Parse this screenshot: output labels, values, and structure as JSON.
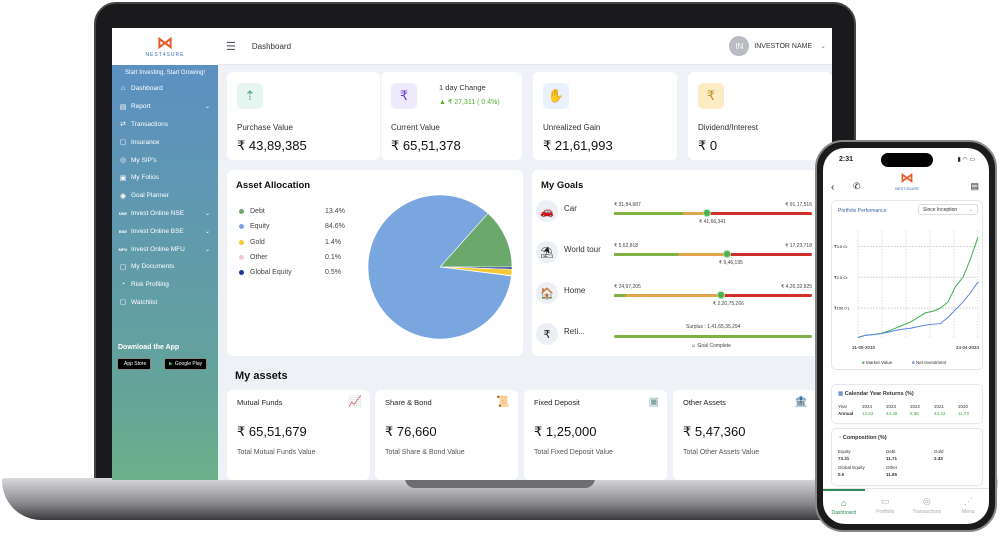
{
  "brand": {
    "name": "NEST4SURE",
    "tagline": "Start Investing, Start Growing!"
  },
  "sidebar": {
    "items": [
      {
        "label": "Dashboard",
        "icon": "home-icon",
        "chevron": false
      },
      {
        "label": "Report",
        "icon": "report-icon",
        "chevron": true
      },
      {
        "label": "Transactions",
        "icon": "transfer-icon",
        "chevron": false
      },
      {
        "label": "Insurance",
        "icon": "document-icon",
        "chevron": false
      },
      {
        "label": "My SIP's",
        "icon": "sip-icon",
        "chevron": false
      },
      {
        "label": "My Folios",
        "icon": "folio-icon",
        "chevron": false
      },
      {
        "label": "Goal Planner",
        "icon": "target-icon",
        "chevron": false
      },
      {
        "label": "Invest Online NSE",
        "icon": "nse-icon",
        "chevron": true,
        "badge": "NSE"
      },
      {
        "label": "Invest Online BSE",
        "icon": "bse-icon",
        "chevron": true,
        "badge": "BSE"
      },
      {
        "label": "Invest Online MFU",
        "icon": "mfu-icon",
        "chevron": true,
        "badge": "MFU"
      },
      {
        "label": "My Documents",
        "icon": "document-icon",
        "chevron": false
      },
      {
        "label": "Risk Profiling",
        "icon": "gauge-icon",
        "chevron": false
      },
      {
        "label": "Watchlist",
        "icon": "list-icon",
        "chevron": false
      }
    ],
    "download_title": "Download the App",
    "app_store": "App Store",
    "google_play": "Google Play"
  },
  "header": {
    "title": "Dashboard",
    "user_initials": "IN",
    "user_name": "INVESTOR NAME"
  },
  "summary": [
    {
      "label": "Purchase Value",
      "value": "₹ 43,89,385"
    },
    {
      "label": "Current Value",
      "value": "₹ 65,51,378",
      "change_label": "1 day Change",
      "change": "₹ 27,311 ( 0.4%)"
    },
    {
      "label": "Unrealized Gain",
      "value": "₹ 21,61,993"
    },
    {
      "label": "Dividend/Interest",
      "value": "₹ 0"
    }
  ],
  "asset_allocation": {
    "title": "Asset Allocation",
    "items": [
      {
        "name": "Debt",
        "pct": "13.4%",
        "value": 13.4,
        "color": "#6ba86b"
      },
      {
        "name": "Equity",
        "pct": "84.6%",
        "value": 84.6,
        "color": "#7aa6e0"
      },
      {
        "name": "Gold",
        "pct": "1.4%",
        "value": 1.4,
        "color": "#f4c934"
      },
      {
        "name": "Other",
        "pct": "0.1%",
        "value": 0.1,
        "color": "#f1c6dc"
      },
      {
        "name": "Global Equity",
        "pct": "0.5%",
        "value": 0.5,
        "color": "#1f3a93"
      }
    ]
  },
  "goals": {
    "title": "My Goals",
    "items": [
      {
        "name": "Car",
        "start": "₹ 31,84,687",
        "current": "₹ 41,66,341",
        "target": "₹ 91,17,516",
        "green": 0.35,
        "progress": 0.47
      },
      {
        "name": "World tour",
        "start": "₹ 5,62,818",
        "current": "₹ 9,46,195",
        "target": "₹ 17,23,718",
        "green": 0.33,
        "progress": 0.57
      },
      {
        "name": "Home",
        "start": "₹ 24,97,205",
        "current": "₹ 2,20,75,266",
        "target": "₹ 4,26,32,925",
        "green": 0.06,
        "progress": 0.54
      },
      {
        "name": "Reti...",
        "surplus": "Surplus :  1,41,65,35,294",
        "status": "Goal Complete",
        "progress": 1
      }
    ]
  },
  "my_assets": {
    "title": "My assets",
    "items": [
      {
        "label": "Mutual Funds",
        "value": "₹ 65,51,679",
        "sub": "Total Mutual Funds Value"
      },
      {
        "label": "Share & Bond",
        "value": "₹ 76,660",
        "sub": "Total Share & Bond Value"
      },
      {
        "label": "Fixed Deposit",
        "value": "₹ 1,25,000",
        "sub": "Total Fixed Deposit Value"
      },
      {
        "label": "Other Assets",
        "value": "₹ 5,47,360",
        "sub": "Total Other Assets Value"
      }
    ]
  },
  "phone": {
    "time": "2:31",
    "perf_title": "Portfolio Performance",
    "perf_filter": "Since Inception",
    "chart_data": {
      "type": "line",
      "y_ticks": [
        "₹3.0 Cr",
        "₹2.0 Cr",
        "₹100.0 L"
      ],
      "x_labels": [
        "31-05-2010",
        "24-04-2024"
      ],
      "series": [
        {
          "name": "Market Value",
          "color": "#3fae49",
          "values": [
            5,
            12,
            14,
            18,
            25,
            35,
            45,
            55,
            70,
            85,
            90,
            100,
            120,
            170,
            200,
            260,
            330
          ]
        },
        {
          "name": "Net Investment",
          "color": "#5b86e5",
          "values": [
            5,
            12,
            14,
            17,
            22,
            28,
            32,
            35,
            40,
            45,
            48,
            50,
            70,
            95,
            120,
            150,
            185
          ]
        }
      ]
    },
    "cyr": {
      "title": "Calendar Year Returns (%)",
      "row_year": "Year",
      "row_annual": "Annual",
      "years": [
        "2024",
        "2023",
        "2022",
        "2021",
        "2020"
      ],
      "returns": [
        "13.63",
        "44.48",
        "8.86",
        "43.43",
        "11.73"
      ]
    },
    "composition": {
      "title": "Composition (%)",
      "items": [
        {
          "name": "Equity",
          "value": "73.31"
        },
        {
          "name": "Debt",
          "value": "11.71"
        },
        {
          "name": "Gold",
          "value": "3.33"
        },
        {
          "name": "Global Equity",
          "value": "0.0"
        },
        {
          "name": "Other",
          "value": "11.65"
        }
      ]
    },
    "tabs": [
      "Dashboard",
      "Portfolio",
      "Transactions",
      "Menu"
    ]
  }
}
